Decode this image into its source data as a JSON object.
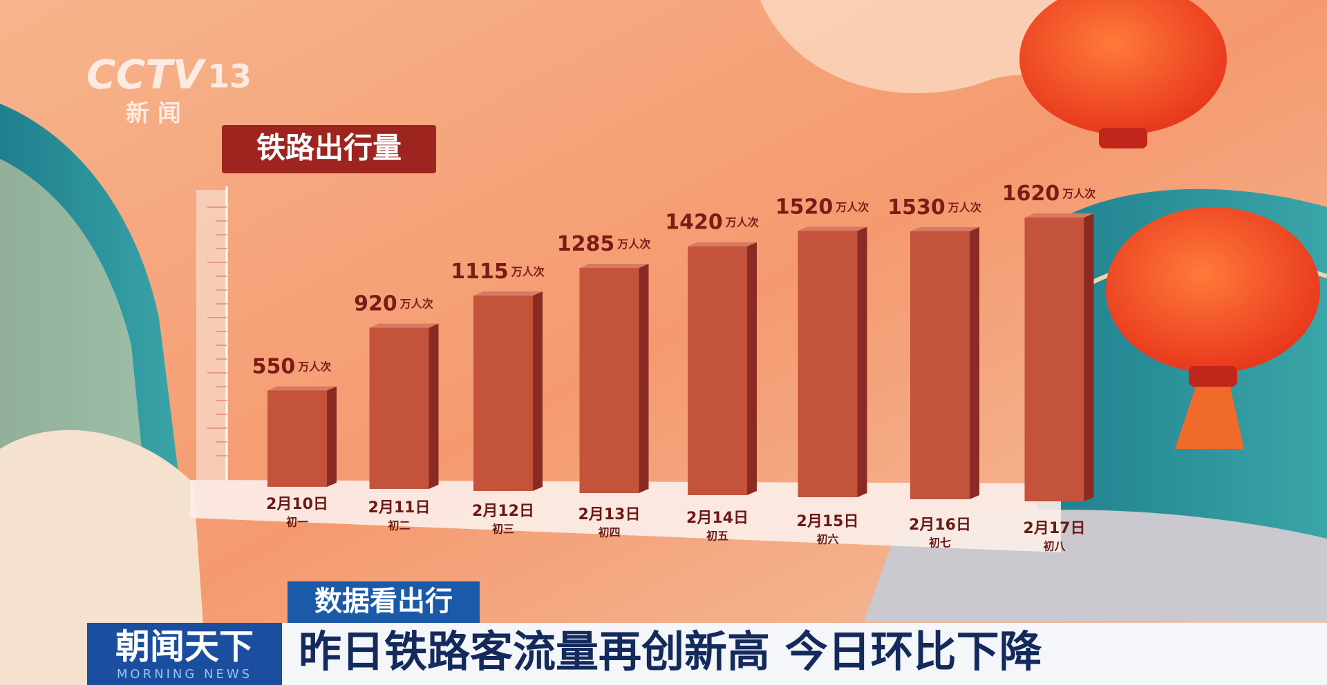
{
  "logo": {
    "brand": "CCTV",
    "channel": "13",
    "name": "新 闻"
  },
  "chart_data": {
    "type": "bar",
    "title": "铁路出行量",
    "categories": [
      "2月10日",
      "2月11日",
      "2月12日",
      "2月13日",
      "2月14日",
      "2月15日",
      "2月16日",
      "2月17日"
    ],
    "subcategories": [
      "初一",
      "初二",
      "初三",
      "初四",
      "初五",
      "初六",
      "初七",
      "初八"
    ],
    "values": [
      550,
      920,
      1115,
      1285,
      1420,
      1520,
      1530,
      1620
    ],
    "unit": "万人次",
    "color": "#c4533c"
  },
  "lower_third": {
    "tag": "数据看出行",
    "program": "朝闻天下",
    "program_en": "MORNING NEWS",
    "headline": "昨日铁路客流量再创新高 今日环比下降"
  }
}
